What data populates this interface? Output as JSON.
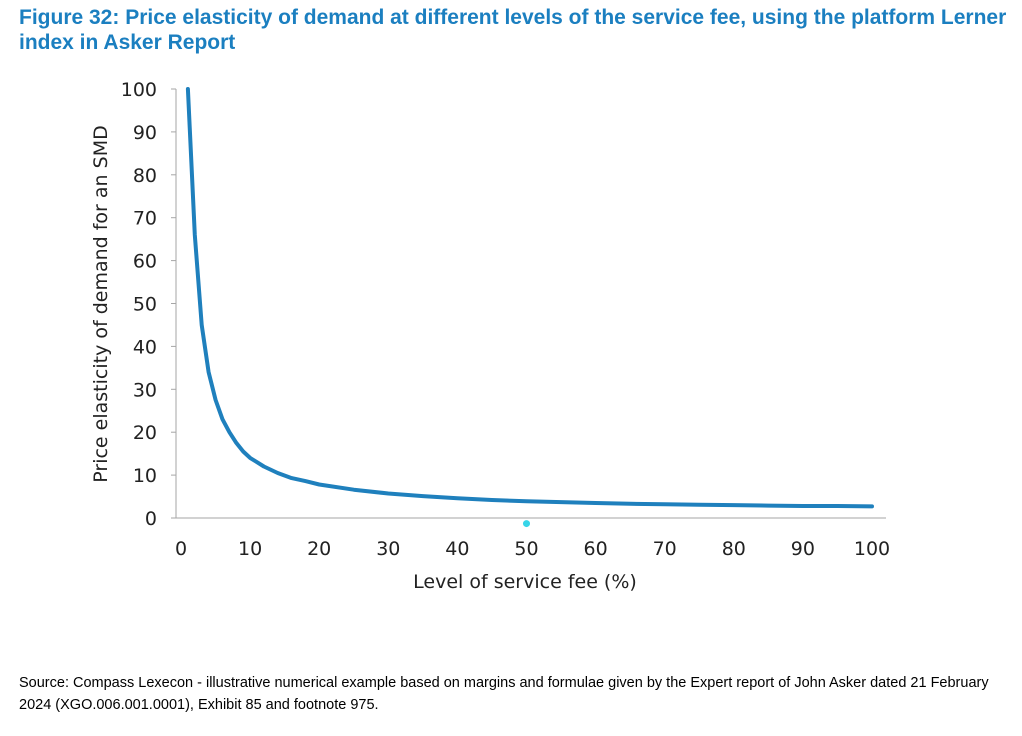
{
  "figure": {
    "title": "Figure 32: Price elasticity of demand at different levels of the service fee, using the platform Lerner index in Asker Report",
    "source": "Source: Compass Lexecon - illustrative numerical example based on margins and formulae given by the Expert report of John Asker dated 21 February 2024 (XGO.006.001.0001), Exhibit 85 and footnote 975."
  },
  "colors": {
    "title": "#1b7fc0",
    "line": "#1f80bd",
    "axis": "#a6a6a6",
    "marker": "#37d5e8"
  },
  "chart_data": {
    "type": "line",
    "title": "",
    "xlabel": "Level of service fee (%)",
    "ylabel": "Price elasticity of demand for an SMD",
    "xlim": [
      0,
      100
    ],
    "ylim": [
      0,
      100
    ],
    "xticks": [
      0,
      10,
      20,
      30,
      40,
      50,
      60,
      70,
      80,
      90,
      100
    ],
    "yticks": [
      0,
      10,
      20,
      30,
      40,
      50,
      60,
      70,
      80,
      90,
      100
    ],
    "grid": false,
    "legend": "none",
    "series": [
      {
        "x": [
          1,
          2,
          3,
          4,
          5,
          6,
          7,
          8,
          9,
          10,
          12,
          14,
          16,
          18,
          20,
          25,
          30,
          35,
          40,
          45,
          50,
          55,
          60,
          65,
          70,
          75,
          80,
          85,
          90,
          95,
          100
        ],
        "y": [
          100,
          66,
          45,
          34,
          27.5,
          23,
          20,
          17.5,
          15.5,
          14,
          12,
          10.5,
          9.3,
          8.6,
          7.8,
          6.6,
          5.7,
          5.1,
          4.6,
          4.2,
          3.9,
          3.7,
          3.5,
          3.3,
          3.2,
          3.1,
          3.0,
          2.9,
          2.8,
          2.8,
          2.7
        ]
      }
    ],
    "point_markers": [
      {
        "x": 50,
        "y": -1.3
      }
    ]
  }
}
